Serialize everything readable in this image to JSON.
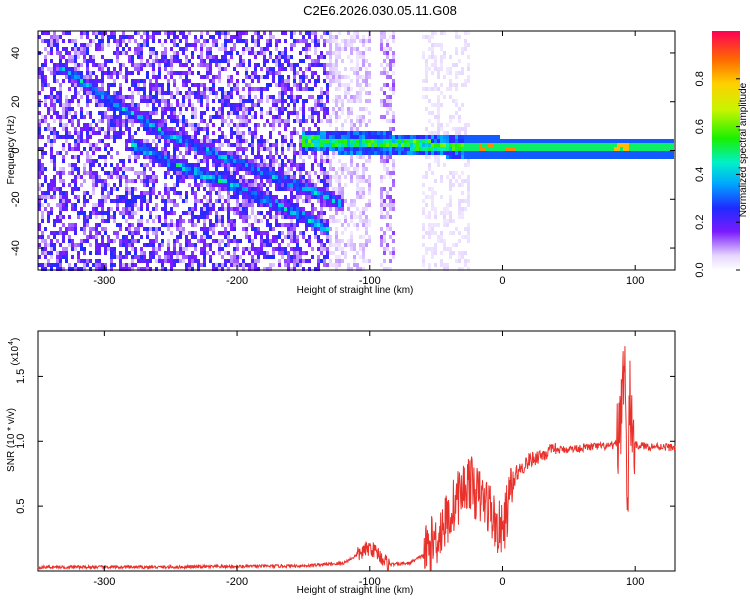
{
  "title": "C2E6.2026.030.05.11.G08",
  "chart_data": [
    {
      "type": "heatmap",
      "xlabel": "Height of straight line (km)",
      "ylabel": "Frequency (Hz)",
      "xlim": [
        -350,
        130
      ],
      "ylim": [
        -49,
        49
      ],
      "x_ticks": [
        -300,
        -200,
        -100,
        0,
        100
      ],
      "x_tick_labels": [
        "-300",
        "-200",
        "-100",
        "0",
        "100"
      ],
      "y_ticks": [
        40,
        20,
        0,
        -20,
        -40
      ],
      "y_tick_labels": [
        "40",
        "20",
        "0",
        "-20",
        "-40"
      ],
      "colorbar": {
        "label": "Normalized spectral amplitude",
        "range": [
          0,
          1
        ],
        "ticks": [
          0.0,
          0.2,
          0.4,
          0.6,
          0.8
        ],
        "tick_labels": [
          "0.0",
          "0.2",
          "0.4",
          "0.6",
          "0.8"
        ],
        "colormap": "rainbow-white-to-red"
      },
      "features": [
        {
          "name": "descending trace A",
          "points": [
            [
              -335,
              35
            ],
            [
              -300,
              22
            ],
            [
              -250,
              6
            ],
            [
              -200,
              -5
            ],
            [
              -150,
              -15
            ],
            [
              -120,
              -22
            ]
          ],
          "amplitude": 0.35
        },
        {
          "name": "descending trace B",
          "points": [
            [
              -280,
              3
            ],
            [
              -250,
              -5
            ],
            [
              -200,
              -15
            ],
            [
              -150,
              -27
            ],
            [
              -130,
              -33
            ]
          ],
          "amplitude": 0.38
        },
        {
          "name": "carrier band",
          "points": [
            [
              -150,
              4
            ],
            [
              -100,
              3
            ],
            [
              -50,
              2
            ],
            [
              0,
              1
            ],
            [
              50,
              1
            ],
            [
              100,
              1
            ],
            [
              130,
              1
            ]
          ],
          "amplitude": 0.5
        }
      ]
    },
    {
      "type": "line",
      "xlabel": "Height of straight line (km)",
      "ylabel": "SNR (10 * v/v)",
      "y_scale_note": "(x10",
      "y_scale_exp": "4",
      "xlim": [
        -350,
        130
      ],
      "ylim": [
        0,
        1.85
      ],
      "x_ticks": [
        -300,
        -200,
        -100,
        0,
        100
      ],
      "x_tick_labels": [
        "-300",
        "-200",
        "-100",
        "0",
        "100"
      ],
      "y_ticks": [
        0.5,
        1.0,
        1.5
      ],
      "y_tick_labels": [
        "0.5",
        "1.0",
        "1.5"
      ],
      "color": "#e8312b",
      "series": [
        {
          "x": [
            -350,
            -300,
            -250,
            -200,
            -150,
            -120,
            -110,
            -100,
            -95,
            -90,
            -85,
            -70,
            -60,
            -50,
            -45,
            -40,
            -35,
            -30,
            -25,
            -20,
            -15,
            -10,
            -5,
            0,
            5,
            10,
            15,
            20,
            30,
            40,
            50,
            60,
            70,
            80,
            85,
            88,
            92,
            94,
            96,
            98,
            100,
            110,
            120,
            130
          ],
          "y": [
            0.03,
            0.03,
            0.03,
            0.035,
            0.04,
            0.06,
            0.12,
            0.18,
            0.15,
            0.09,
            0.05,
            0.06,
            0.12,
            0.25,
            0.35,
            0.42,
            0.55,
            0.62,
            0.7,
            0.6,
            0.55,
            0.5,
            0.35,
            0.3,
            0.55,
            0.75,
            0.8,
            0.85,
            0.9,
            0.93,
            0.94,
            0.95,
            0.96,
            0.96,
            0.97,
            1.05,
            1.7,
            0.4,
            1.3,
            1.1,
            0.97,
            0.96,
            0.96,
            0.95
          ]
        }
      ]
    }
  ]
}
